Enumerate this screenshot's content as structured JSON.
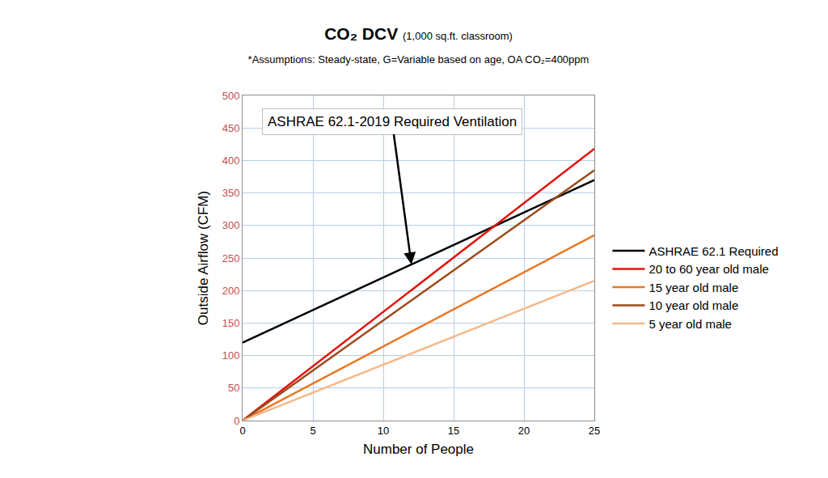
{
  "chart_data": {
    "type": "line",
    "title": "CO₂ DCV",
    "title_note": "(1,000 sq.ft. classroom)",
    "subtitle": "*Assumptions: Steady-state, G=Variable based on age, OA CO₂=400ppm",
    "x_label": "Number of People",
    "y_label": "Outside Airflow (CFM)",
    "x": [
      0,
      25
    ],
    "series": [
      {
        "name": "ASHRAE 62.1 Required",
        "color": "#000000",
        "values": [
          120,
          370
        ]
      },
      {
        "name": "20 to 60 year old male",
        "color": "#e3120b",
        "values": [
          0,
          418
        ]
      },
      {
        "name": "15 year old male",
        "color": "#e87722",
        "values": [
          0,
          285
        ]
      },
      {
        "name": "10 year old male",
        "color": "#9c4a1a",
        "values": [
          0,
          385
        ]
      },
      {
        "name": "5 year old male",
        "color": "#f6b98a",
        "values": [
          0,
          215
        ]
      }
    ],
    "xlim": [
      0,
      25
    ],
    "xticks": [
      0,
      5,
      10,
      15,
      20,
      25
    ],
    "ylim": [
      0,
      500
    ],
    "yticks": [
      0,
      50,
      100,
      150,
      200,
      250,
      300,
      350,
      400,
      450,
      500
    ],
    "grid": true,
    "legend": "right",
    "annotations": [
      {
        "text": "ASHRAE 62.1-2019 Required Ventilation",
        "x": 12,
        "y": 240
      }
    ]
  }
}
